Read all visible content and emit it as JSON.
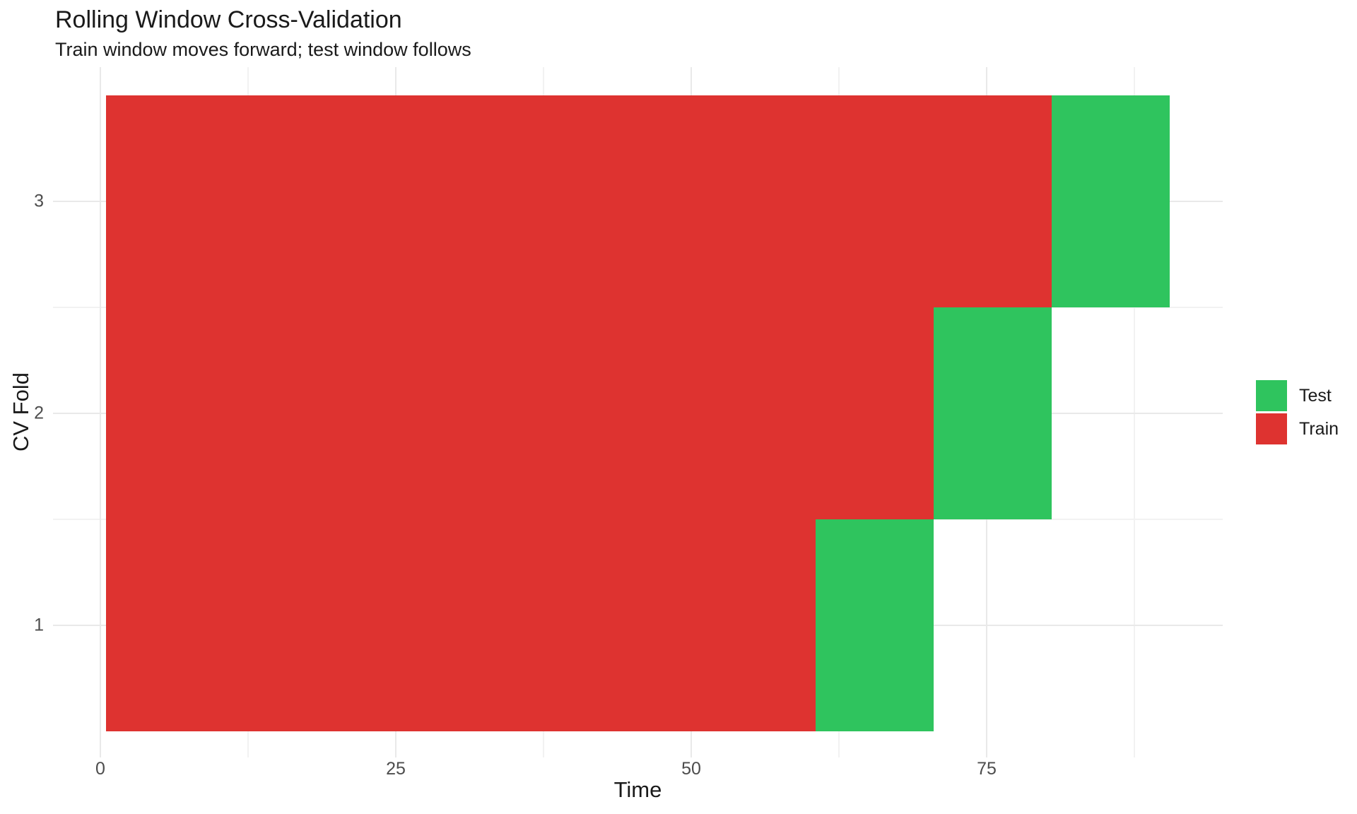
{
  "header": {
    "title": "Rolling Window Cross-Validation",
    "subtitle": "Train window moves forward; test window follows"
  },
  "chart_data": {
    "type": "bar",
    "orientation": "horizontal",
    "title": "Rolling Window Cross-Validation",
    "subtitle": "Train window moves forward; test window follows",
    "xlabel": "Time",
    "ylabel": "CV Fold",
    "xlim": [
      -4,
      95
    ],
    "ylim": [
      0.35,
      3.65
    ],
    "grid": "on",
    "x_ticks": [
      0,
      25,
      50,
      75
    ],
    "x_tick_labels": [
      "0",
      "25",
      "50",
      "75"
    ],
    "x_minor_ticks": [
      12.5,
      37.5,
      62.5,
      87.5
    ],
    "y_ticks": [
      1,
      2,
      3
    ],
    "y_tick_labels": [
      "1",
      "2",
      "3"
    ],
    "y_minor_ticks": [
      1.5,
      2.5
    ],
    "tile_half_width": 0.5,
    "bar_height_units": 1,
    "folds": [
      {
        "fold": 1,
        "train_range": [
          1,
          60
        ],
        "test_range": [
          61,
          70
        ]
      },
      {
        "fold": 2,
        "train_range": [
          1,
          70
        ],
        "test_range": [
          71,
          80
        ]
      },
      {
        "fold": 3,
        "train_range": [
          1,
          80
        ],
        "test_range": [
          81,
          90
        ]
      }
    ],
    "colors": {
      "train": "#DE3330",
      "test": "#2FC45E",
      "grid_major": "#E9E9E9",
      "grid_minor": "#F2F2F2",
      "tick_label": "#4D4D4D",
      "text": "#1A1A1A",
      "background": "#FFFFFF"
    },
    "legend": {
      "position": "right",
      "items": [
        {
          "label": "Test",
          "color": "#2FC45E",
          "series_key": "test"
        },
        {
          "label": "Train",
          "color": "#DE3330",
          "series_key": "train"
        }
      ]
    }
  }
}
